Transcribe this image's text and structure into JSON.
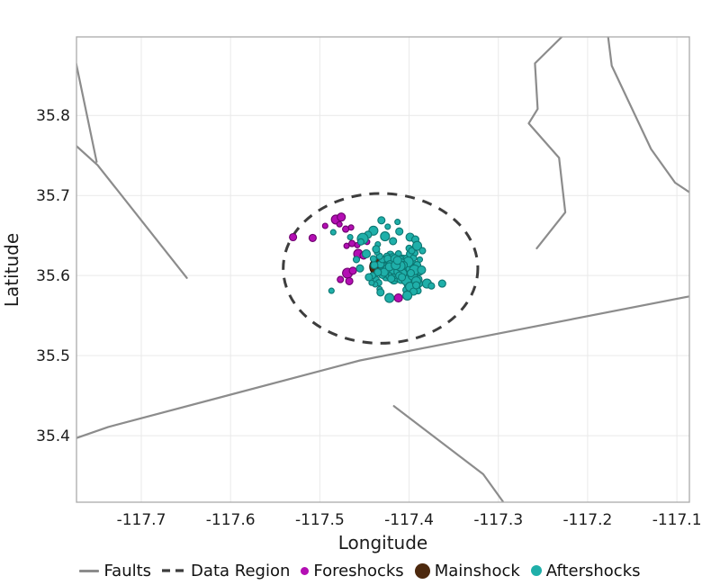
{
  "chart_data": {
    "type": "scatter",
    "xlabel": "Longitude",
    "ylabel": "Latitude",
    "xlim": [
      -117.7726,
      -117.086
    ],
    "ylim": [
      35.317,
      35.898
    ],
    "xticks": [
      -117.7,
      -117.6,
      -117.5,
      -117.4,
      -117.3,
      -117.2,
      -117.1
    ],
    "xtick_labels": [
      "-117.7",
      "-117.6",
      "-117.5",
      "-117.4",
      "-117.3",
      "-117.2",
      "-117.1"
    ],
    "yticks": [
      35.4,
      35.5,
      35.6,
      35.7,
      35.8
    ],
    "ytick_labels": [
      "35.4",
      "35.5",
      "35.6",
      "35.7",
      "35.8"
    ],
    "grid": true,
    "legend_position": "bottom",
    "colors": {
      "background": "#ffffff",
      "grid": "#e9e9e9",
      "border": "#aaaaaa",
      "fault": "#8c8c8c",
      "region": "#3d3d3d",
      "text": "#1c1c1c",
      "foreshock_fill": "#b30eb3",
      "foreshock_edge": "#6d006d",
      "mainshock_fill": "#4d290e",
      "mainshock_edge": "#241205",
      "aftershock_fill": "#1fafa9",
      "aftershock_edge": "#0d7672"
    },
    "faults": [
      [
        [
          -117.773,
          35.865
        ],
        [
          -117.75,
          35.742
        ]
      ],
      [
        [
          -117.773,
          35.762
        ],
        [
          -117.749,
          35.738
        ],
        [
          -117.649,
          35.597
        ]
      ],
      [
        [
          -117.773,
          35.397
        ],
        [
          -117.737,
          35.411
        ],
        [
          -117.455,
          35.494
        ],
        [
          -117.086,
          35.574
        ]
      ],
      [
        [
          -117.417,
          35.437
        ],
        [
          -117.317,
          35.352
        ],
        [
          -117.295,
          35.318
        ]
      ],
      [
        [
          -117.229,
          35.898
        ],
        [
          -117.259,
          35.865
        ],
        [
          -117.256,
          35.808
        ],
        [
          -117.266,
          35.79
        ],
        [
          -117.232,
          35.747
        ],
        [
          -117.225,
          35.679
        ],
        [
          -117.257,
          35.634
        ]
      ],
      [
        [
          -117.177,
          35.898
        ],
        [
          -117.173,
          35.862
        ],
        [
          -117.129,
          35.758
        ],
        [
          -117.102,
          35.716
        ],
        [
          -117.086,
          35.704
        ]
      ]
    ],
    "data_region": {
      "center": [
        -117.432,
        35.609
      ],
      "rx": 0.109,
      "ry": 0.0935
    },
    "series": [
      {
        "name": "Foreshocks",
        "points_lon_lat_r": [
          [
            -117.53,
            35.648,
            4
          ],
          [
            -117.508,
            35.647,
            4
          ],
          [
            -117.494,
            35.662,
            3
          ],
          [
            -117.482,
            35.67,
            5
          ],
          [
            -117.476,
            35.673,
            4.5
          ],
          [
            -117.478,
            35.664,
            3
          ],
          [
            -117.471,
            35.658,
            3.5
          ],
          [
            -117.465,
            35.66,
            3
          ],
          [
            -117.47,
            35.637,
            3
          ],
          [
            -117.464,
            35.64,
            3.5
          ],
          [
            -117.458,
            35.638,
            3
          ],
          [
            -117.447,
            35.642,
            3
          ],
          [
            -117.457,
            35.627,
            5
          ],
          [
            -117.451,
            35.625,
            4
          ],
          [
            -117.469,
            35.603,
            5.5
          ],
          [
            -117.463,
            35.606,
            4
          ],
          [
            -117.477,
            35.595,
            3.5
          ],
          [
            -117.467,
            35.593,
            4
          ],
          [
            -117.412,
            35.572,
            4.5
          ]
        ]
      },
      {
        "name": "Mainshock",
        "points_lon_lat_r": [
          [
            -117.434,
            35.611,
            10
          ]
        ]
      },
      {
        "name": "Aftershocks",
        "points_lon_lat_r": [
          [
            -117.418,
            35.611,
            7
          ],
          [
            -117.413,
            35.608,
            6
          ],
          [
            -117.422,
            35.605,
            5
          ],
          [
            -117.411,
            35.614,
            6.5
          ],
          [
            -117.424,
            35.616,
            5
          ],
          [
            -117.415,
            35.602,
            5.5
          ],
          [
            -117.42,
            35.62,
            4.5
          ],
          [
            -117.409,
            35.604,
            7
          ],
          [
            -117.427,
            35.608,
            5
          ],
          [
            -117.414,
            35.622,
            4
          ],
          [
            -117.406,
            35.61,
            5.5
          ],
          [
            -117.423,
            35.599,
            5
          ],
          [
            -117.41,
            35.599,
            6
          ],
          [
            -117.429,
            35.618,
            4
          ],
          [
            -117.417,
            35.595,
            5
          ],
          [
            -117.404,
            35.603,
            6
          ],
          [
            -117.421,
            35.626,
            4
          ],
          [
            -117.412,
            35.627,
            3.5
          ],
          [
            -117.431,
            35.605,
            4.5
          ],
          [
            -117.407,
            35.62,
            5
          ],
          [
            -117.416,
            35.614,
            6
          ],
          [
            -117.425,
            35.602,
            5.5
          ],
          [
            -117.405,
            35.598,
            5
          ],
          [
            -117.419,
            35.604,
            6.5
          ],
          [
            -117.408,
            35.613,
            5.5
          ],
          [
            -117.428,
            35.612,
            5
          ],
          [
            -117.418,
            35.623,
            4
          ],
          [
            -117.411,
            35.607,
            7
          ],
          [
            -117.422,
            35.618,
            5.5
          ],
          [
            -117.414,
            35.598,
            4.5
          ],
          [
            -117.426,
            35.598,
            4
          ],
          [
            -117.406,
            35.617,
            4.5
          ],
          [
            -117.43,
            35.601,
            4
          ],
          [
            -117.415,
            35.61,
            5.5
          ],
          [
            -117.42,
            35.609,
            6
          ],
          [
            -117.41,
            35.619,
            5
          ],
          [
            -117.424,
            35.61,
            6
          ],
          [
            -117.417,
            35.605,
            5
          ],
          [
            -117.413,
            35.602,
            4.5
          ],
          [
            -117.427,
            35.621,
            3.5
          ],
          [
            -117.404,
            35.609,
            4.5
          ],
          [
            -117.432,
            35.614,
            4
          ],
          [
            -117.409,
            35.595,
            4.5
          ],
          [
            -117.419,
            35.615,
            5.5
          ],
          [
            -117.412,
            35.611,
            6
          ],
          [
            -117.421,
            35.6,
            5
          ],
          [
            -117.408,
            35.601,
            5.5
          ],
          [
            -117.425,
            35.624,
            3.5
          ],
          [
            -117.416,
            35.618,
            5
          ],
          [
            -117.423,
            35.608,
            6
          ],
          [
            -117.407,
            35.607,
            5
          ],
          [
            -117.428,
            35.604,
            4.5
          ],
          [
            -117.418,
            35.601,
            5
          ],
          [
            -117.405,
            35.612,
            4
          ],
          [
            -117.43,
            35.62,
            3.5
          ],
          [
            -117.413,
            35.617,
            5.5
          ],
          [
            -117.42,
            35.596,
            4
          ],
          [
            -117.41,
            35.609,
            6.5
          ],
          [
            -117.424,
            35.621,
            4
          ],
          [
            -117.415,
            35.605,
            5.5
          ],
          [
            -117.4,
            35.6,
            5
          ],
          [
            -117.435,
            35.604,
            4
          ],
          [
            -117.402,
            35.621,
            4.5
          ],
          [
            -117.433,
            35.624,
            3.5
          ],
          [
            -117.398,
            35.594,
            5.5
          ],
          [
            -117.437,
            35.595,
            3.5
          ],
          [
            -117.396,
            35.615,
            4.5
          ],
          [
            -117.439,
            35.613,
            4
          ],
          [
            -117.401,
            35.589,
            4.5
          ],
          [
            -117.393,
            35.602,
            5
          ],
          [
            -117.434,
            35.591,
            3.5
          ],
          [
            -117.399,
            35.627,
            4
          ],
          [
            -117.39,
            35.595,
            4.5
          ],
          [
            -117.441,
            35.6,
            3.5
          ],
          [
            -117.394,
            35.589,
            5
          ],
          [
            -117.403,
            35.582,
            4
          ],
          [
            -117.391,
            35.613,
            4
          ],
          [
            -117.436,
            35.629,
            3
          ],
          [
            -117.397,
            35.583,
            4.5
          ],
          [
            -117.388,
            35.605,
            4
          ],
          [
            -117.402,
            35.605,
            6
          ],
          [
            -117.438,
            35.589,
            3
          ],
          [
            -117.395,
            35.622,
            3.5
          ],
          [
            -117.392,
            35.584,
            4.5
          ],
          [
            -117.433,
            35.583,
            3
          ],
          [
            -117.4,
            35.634,
            3.5
          ],
          [
            -117.389,
            35.59,
            4
          ],
          [
            -117.44,
            35.621,
            3.5
          ],
          [
            -117.398,
            35.609,
            5.5
          ],
          [
            -117.393,
            35.628,
            3
          ],
          [
            -117.403,
            35.594,
            5.5
          ],
          [
            -117.396,
            35.6,
            5
          ],
          [
            -117.401,
            35.617,
            5.5
          ],
          [
            -117.39,
            35.581,
            3.5
          ],
          [
            -117.437,
            35.634,
            3
          ],
          [
            -117.394,
            35.607,
            5.5
          ],
          [
            -117.402,
            35.577,
            3.5
          ],
          [
            -117.388,
            35.62,
            3
          ],
          [
            -117.442,
            35.591,
            3
          ],
          [
            -117.399,
            35.586,
            5
          ],
          [
            -117.392,
            35.593,
            5
          ],
          [
            -117.435,
            35.639,
            3
          ],
          [
            -117.397,
            35.631,
            3.5
          ],
          [
            -117.395,
            35.58,
            4
          ],
          [
            -117.485,
            35.654,
            3
          ],
          [
            -117.431,
            35.669,
            4
          ],
          [
            -117.424,
            35.661,
            3
          ],
          [
            -117.44,
            35.656,
            5
          ],
          [
            -117.446,
            35.651,
            4
          ],
          [
            -117.452,
            35.646,
            6
          ],
          [
            -117.427,
            35.649,
            5
          ],
          [
            -117.418,
            35.643,
            4
          ],
          [
            -117.411,
            35.655,
            4
          ],
          [
            -117.399,
            35.648,
            4.5
          ],
          [
            -117.393,
            35.645,
            4
          ],
          [
            -117.391,
            35.637,
            5
          ],
          [
            -117.385,
            35.631,
            3.5
          ],
          [
            -117.466,
            35.648,
            3
          ],
          [
            -117.448,
            35.627,
            4.5
          ],
          [
            -117.455,
            35.609,
            4
          ],
          [
            -117.445,
            35.598,
            4
          ],
          [
            -117.487,
            35.581,
            3
          ],
          [
            -117.432,
            35.579,
            4
          ],
          [
            -117.422,
            35.572,
            5
          ],
          [
            -117.402,
            35.575,
            5
          ],
          [
            -117.392,
            35.588,
            4
          ],
          [
            -117.38,
            35.59,
            5
          ],
          [
            -117.375,
            35.587,
            3.5
          ],
          [
            -117.398,
            35.603,
            4
          ],
          [
            -117.386,
            35.607,
            4.5
          ],
          [
            -117.363,
            35.59,
            4
          ],
          [
            -117.413,
            35.667,
            3
          ],
          [
            -117.437,
            35.633,
            4
          ],
          [
            -117.459,
            35.62,
            3.5
          ],
          [
            -117.454,
            35.642,
            3.5
          ],
          [
            -117.419,
            35.612,
            4.5
          ],
          [
            -117.414,
            35.615,
            5
          ],
          [
            -117.417,
            35.608,
            5.5
          ],
          [
            -117.412,
            35.605,
            5
          ],
          [
            -117.409,
            35.616,
            4.5
          ],
          [
            -117.421,
            35.613,
            5
          ],
          [
            -117.407,
            35.603,
            4.5
          ],
          [
            -117.411,
            35.6,
            4
          ],
          [
            -117.416,
            35.621,
            4.5
          ],
          [
            -117.422,
            35.611,
            4.5
          ],
          [
            -117.406,
            35.613,
            4
          ],
          [
            -117.41,
            35.612,
            5.5
          ],
          [
            -117.415,
            35.613,
            5
          ],
          [
            -117.413,
            35.619,
            4.5
          ],
          [
            -117.408,
            35.598,
            4
          ]
        ]
      }
    ],
    "legend": [
      {
        "label": "Faults",
        "marker": "line",
        "color": "#8c8c8c"
      },
      {
        "label": "Data Region",
        "marker": "dashed",
        "color": "#3d3d3d"
      },
      {
        "label": "Foreshocks",
        "marker": "dot",
        "color": "#b30eb3",
        "diameter": 9
      },
      {
        "label": "Mainshock",
        "marker": "dot",
        "color": "#4d290e",
        "diameter": 17
      },
      {
        "label": "Aftershocks",
        "marker": "dot",
        "color": "#1fafa9",
        "diameter": 12
      }
    ]
  }
}
